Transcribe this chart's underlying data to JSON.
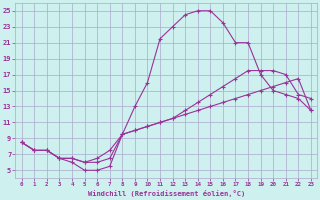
{
  "background_color": "#cef0ee",
  "grid_color": "#aaaacc",
  "line_color": "#993399",
  "xlabel": "Windchill (Refroidissement éolien,°C)",
  "xlim": [
    -0.5,
    23.5
  ],
  "ylim": [
    4,
    26
  ],
  "xticks": [
    0,
    1,
    2,
    3,
    4,
    5,
    6,
    7,
    8,
    9,
    10,
    11,
    12,
    13,
    14,
    15,
    16,
    17,
    18,
    19,
    20,
    21,
    22,
    23
  ],
  "yticks": [
    5,
    7,
    9,
    11,
    13,
    15,
    17,
    19,
    21,
    23,
    25
  ],
  "curve1_x": [
    0,
    1,
    2,
    3,
    4,
    5,
    6,
    7,
    8,
    9,
    10,
    11,
    12,
    13,
    14,
    15,
    16,
    17,
    18,
    19,
    20,
    21,
    22,
    23
  ],
  "curve1_y": [
    8.5,
    7.5,
    7.5,
    6.5,
    6.0,
    5.0,
    5.0,
    5.5,
    9.5,
    13.0,
    16.0,
    21.5,
    23.0,
    24.5,
    25.0,
    25.0,
    23.5,
    21.0,
    21.0,
    17.0,
    15.0,
    14.5,
    14.0,
    12.5
  ],
  "curve2_x": [
    0,
    1,
    2,
    3,
    4,
    5,
    6,
    7,
    8,
    9,
    10,
    11,
    12,
    13,
    14,
    15,
    16,
    17,
    18,
    19,
    20,
    21,
    22,
    23
  ],
  "curve2_y": [
    8.5,
    7.5,
    7.5,
    6.5,
    6.5,
    6.0,
    6.0,
    6.5,
    9.5,
    10.0,
    10.5,
    11.0,
    11.5,
    12.5,
    13.5,
    14.5,
    15.5,
    16.5,
    17.5,
    17.5,
    17.5,
    17.0,
    14.5,
    14.0
  ],
  "curve3_x": [
    0,
    1,
    2,
    3,
    4,
    5,
    6,
    7,
    8,
    9,
    10,
    11,
    12,
    13,
    14,
    15,
    16,
    17,
    18,
    19,
    20,
    21,
    22,
    23
  ],
  "curve3_y": [
    8.5,
    7.5,
    7.5,
    6.5,
    6.5,
    6.0,
    6.5,
    7.5,
    9.5,
    10.0,
    10.5,
    11.0,
    11.5,
    12.0,
    12.5,
    13.0,
    13.5,
    14.0,
    14.5,
    15.0,
    15.5,
    16.0,
    16.5,
    12.5
  ]
}
